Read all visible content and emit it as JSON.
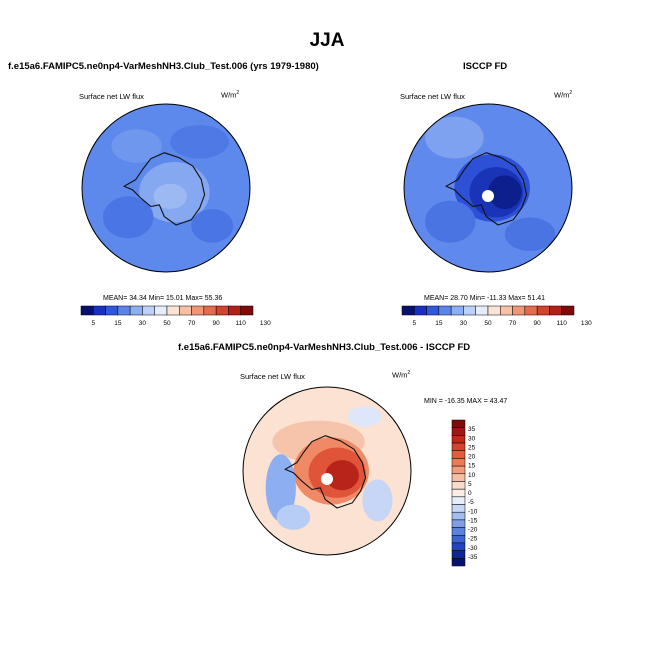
{
  "main_title": "JJA",
  "panels": [
    {
      "title": "f.e15a6.FAMIPC5.ne0np4-VarMeshNH3.Club_Test.006 (yrs 1979-1980)",
      "field_label": "Surface net LW flux",
      "units": "W/m",
      "units_sup": "2",
      "stats": "MEAN=  34.34   Min=  15.01   Max=  55.36"
    },
    {
      "title": "ISCCP FD",
      "field_label": "Surface net LW flux",
      "units": "W/m",
      "units_sup": "2",
      "stats": "MEAN=  28.70   Min= -11.33   Max=  51.41"
    },
    {
      "title": "f.e15a6.FAMIPC5.ne0np4-VarMeshNH3.Club_Test.006 - ISCCP FD",
      "field_label": "Surface net LW flux",
      "units": "W/m",
      "units_sup": "2",
      "stats": "MIN = -16.35 MAX =  43.47"
    }
  ],
  "chart_data": [
    {
      "type": "heatmap",
      "title": "f.e15a6.FAMIPC5.ne0np4-VarMeshNH3.Club_Test.006 (yrs 1979-1980)",
      "field": "Surface net LW flux",
      "units": "W/m2",
      "projection": "south-polar-stereographic",
      "mean": 34.34,
      "min": 15.01,
      "max": 55.36,
      "colorbar": {
        "orientation": "horizontal",
        "levels": [
          "5",
          "15",
          "30",
          "50",
          "70",
          "90",
          "110",
          "130"
        ],
        "colors": [
          "#08106e",
          "#1a2fc4",
          "#2f58e0",
          "#5a84ec",
          "#8eaef2",
          "#bdd0f7",
          "#e5ecfa",
          "#fbe3d6",
          "#f7c1a6",
          "#f09675",
          "#e66a4c",
          "#d3432d",
          "#b32018",
          "#7f0a0a"
        ]
      }
    },
    {
      "type": "heatmap",
      "title": "ISCCP FD",
      "field": "Surface net LW flux",
      "units": "W/m2",
      "projection": "south-polar-stereographic",
      "mean": 28.7,
      "min": -11.33,
      "max": 51.41,
      "colorbar": {
        "orientation": "horizontal",
        "levels": [
          "5",
          "15",
          "30",
          "50",
          "70",
          "90",
          "110",
          "130"
        ],
        "colors": [
          "#08106e",
          "#1a2fc4",
          "#2f58e0",
          "#5a84ec",
          "#8eaef2",
          "#bdd0f7",
          "#e5ecfa",
          "#fbe3d6",
          "#f7c1a6",
          "#f09675",
          "#e66a4c",
          "#d3432d",
          "#b32018",
          "#7f0a0a"
        ]
      }
    },
    {
      "type": "heatmap",
      "title": "f.e15a6.FAMIPC5.ne0np4-VarMeshNH3.Club_Test.006 - ISCCP FD",
      "field": "Surface net LW flux",
      "units": "W/m2",
      "projection": "south-polar-stereographic",
      "min": -16.35,
      "max": 43.47,
      "colorbar": {
        "orientation": "vertical",
        "levels": [
          "35",
          "30",
          "25",
          "20",
          "15",
          "10",
          "5",
          "0",
          "-5",
          "-10",
          "-15",
          "-20",
          "-25",
          "-30",
          "-35"
        ],
        "colors": [
          "#7f0a0a",
          "#a31512",
          "#c0281a",
          "#d3432d",
          "#e35c3e",
          "#ec7a57",
          "#f29c7c",
          "#f6bea3",
          "#fadccb",
          "#fbeee6",
          "#e6eefb",
          "#c7d8f5",
          "#a3bdee",
          "#7e9fe6",
          "#5a82dd",
          "#3a63cf",
          "#2244b8",
          "#10268f",
          "#061470"
        ]
      }
    }
  ]
}
